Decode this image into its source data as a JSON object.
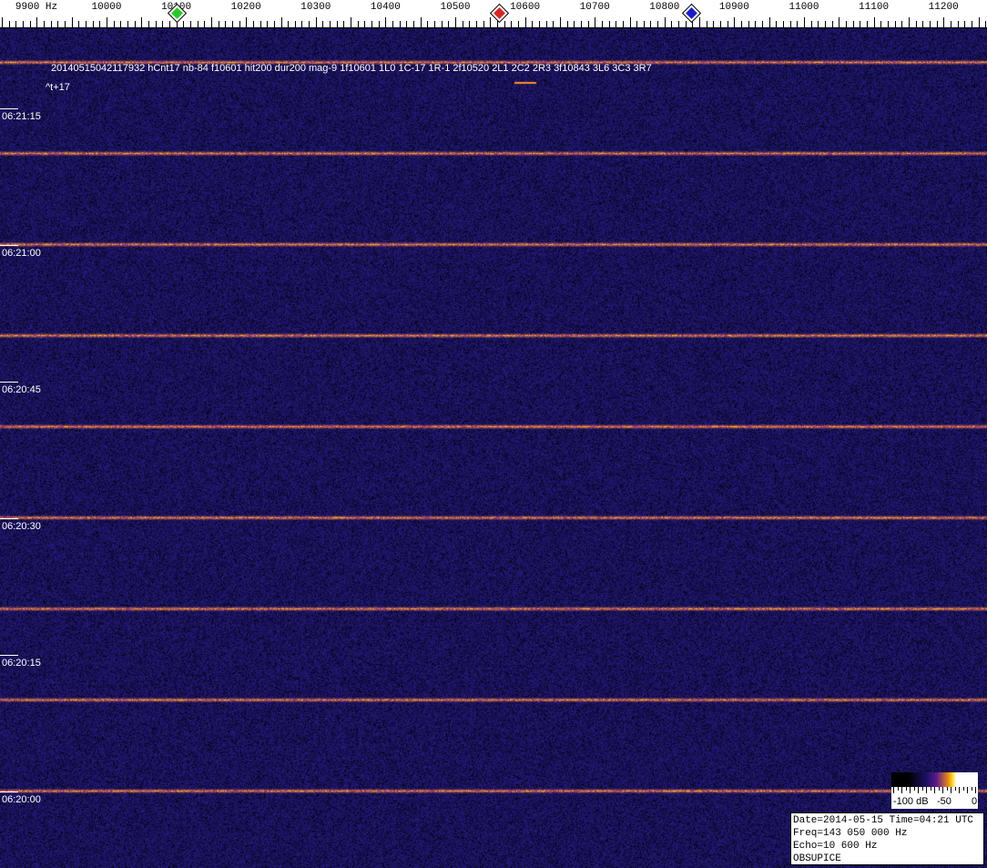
{
  "ruler": {
    "unit_label": "9900 Hz",
    "labels": [
      "10000",
      "10100",
      "10200",
      "10300",
      "10400",
      "10500",
      "10600",
      "10700",
      "10800",
      "10900",
      "11000",
      "11100",
      "11200"
    ],
    "range_hz": [
      9850,
      11260
    ],
    "markers": [
      {
        "name": "green-marker",
        "freq_hz": 10100,
        "color": "#22cc22"
      },
      {
        "name": "red-marker",
        "freq_hz": 10563,
        "color": "#dd2222"
      },
      {
        "name": "blue-marker",
        "freq_hz": 10838,
        "color": "#1a1acc"
      }
    ]
  },
  "waterfall": {
    "annotation": "20140515042117932 hCnt17 nb-84 f10601 hit200 dur200 mag-9 1f10601 1L0 1C-17 1R-1 2f10520 2L1 2C2 2R3 3f10843 3L6 3C3 3R7",
    "annotation_sub": "^t+17",
    "time_labels": [
      "06:21:15",
      "06:21:00",
      "06:20:45",
      "06:20:30",
      "06:20:15",
      "06:20:00"
    ],
    "background_color": "#14145a",
    "trace_color": "#ffa020"
  },
  "colorbar": {
    "labels": [
      "-100 dB",
      "-50",
      "0"
    ]
  },
  "info": {
    "line1": "Date=2014-05-15 Time=04:21 UTC",
    "line2": "Freq=143 050 000 Hz",
    "line3": "Echo=10 600 Hz",
    "line4": "OBSUPICE"
  }
}
